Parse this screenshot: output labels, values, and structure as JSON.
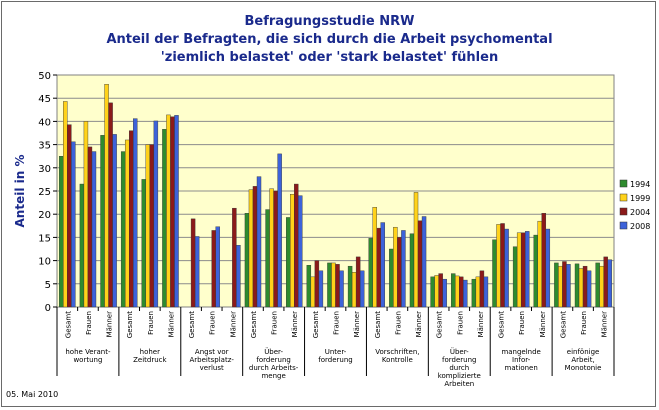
{
  "chart_data": {
    "type": "bar",
    "title_lines": [
      "Befragungsstudie NRW",
      "Anteil der Befragten, die sich durch die Arbeit psychomental",
      "'ziemlich belastet' oder 'stark belastet' fühlen"
    ],
    "ylabel": "Anteil in %",
    "ylim": [
      0,
      50
    ],
    "yticks": [
      0,
      5,
      10,
      15,
      20,
      25,
      30,
      35,
      40,
      45,
      50
    ],
    "grid": true,
    "legend_position": "right",
    "subcategories": [
      "Gesamt",
      "Frauen",
      "Männer"
    ],
    "groups": [
      {
        "label": [
          "hohe Verant-",
          "wortung"
        ]
      },
      {
        "label": [
          "hoher",
          "Zeitdruck"
        ]
      },
      {
        "label": [
          "Angst vor",
          "Arbeitsplatz-",
          "verlust"
        ]
      },
      {
        "label": [
          "Über-",
          "forderung",
          "durch Arbeits-",
          "menge"
        ]
      },
      {
        "label": [
          "Unter-",
          "forderung"
        ]
      },
      {
        "label": [
          "Vorschriften,",
          "Kontrolle"
        ]
      },
      {
        "label": [
          "Über-",
          "forderung",
          "durch",
          "komplizierte",
          "Arbeiten"
        ]
      },
      {
        "label": [
          "mangelnde",
          "Infor-",
          "mationen"
        ]
      },
      {
        "label": [
          "einfönige",
          "Arbeit,",
          "Monotonie"
        ]
      }
    ],
    "series": [
      {
        "name": "1994",
        "color": "#2e8b2e",
        "values": [
          32.5,
          26.5,
          37,
          33.5,
          27.5,
          38.3,
          null,
          null,
          null,
          20.2,
          21,
          19.3,
          9,
          9.5,
          8.8,
          14.8,
          12.5,
          15.8,
          6.5,
          7.2,
          6,
          14.5,
          13,
          15.5,
          9.5,
          9.3,
          9.5
        ]
      },
      {
        "name": "1999",
        "color": "#ffd21a",
        "values": [
          44.3,
          40,
          48,
          36,
          35,
          41.4,
          null,
          null,
          null,
          25.3,
          25.5,
          24.3,
          6.5,
          9.5,
          7.5,
          21.5,
          17.2,
          24.7,
          6.8,
          6.7,
          6.5,
          17.8,
          16,
          18.5,
          8.8,
          8.3,
          8.8
        ]
      },
      {
        "name": "2004",
        "color": "#8b1a1a",
        "values": [
          39.3,
          34.5,
          44,
          38,
          35,
          41,
          19,
          16.5,
          21.3,
          26,
          25,
          26.5,
          10,
          9.2,
          10.8,
          17,
          15,
          18.6,
          7.2,
          6.5,
          7.8,
          18,
          16,
          20.2,
          9.8,
          8.8,
          10.8
        ]
      },
      {
        "name": "2008",
        "color": "#3d62d9",
        "values": [
          35.6,
          33.5,
          37.2,
          40.6,
          40.1,
          41.3,
          15.2,
          17.3,
          13.3,
          28.1,
          33,
          24,
          7.8,
          7.8,
          7.8,
          18.2,
          16.5,
          19.5,
          6,
          5.8,
          6.5,
          16.8,
          16.3,
          16.8,
          9.2,
          7.8,
          10.2
        ]
      }
    ]
  },
  "footnote": "05. Mai 2010"
}
